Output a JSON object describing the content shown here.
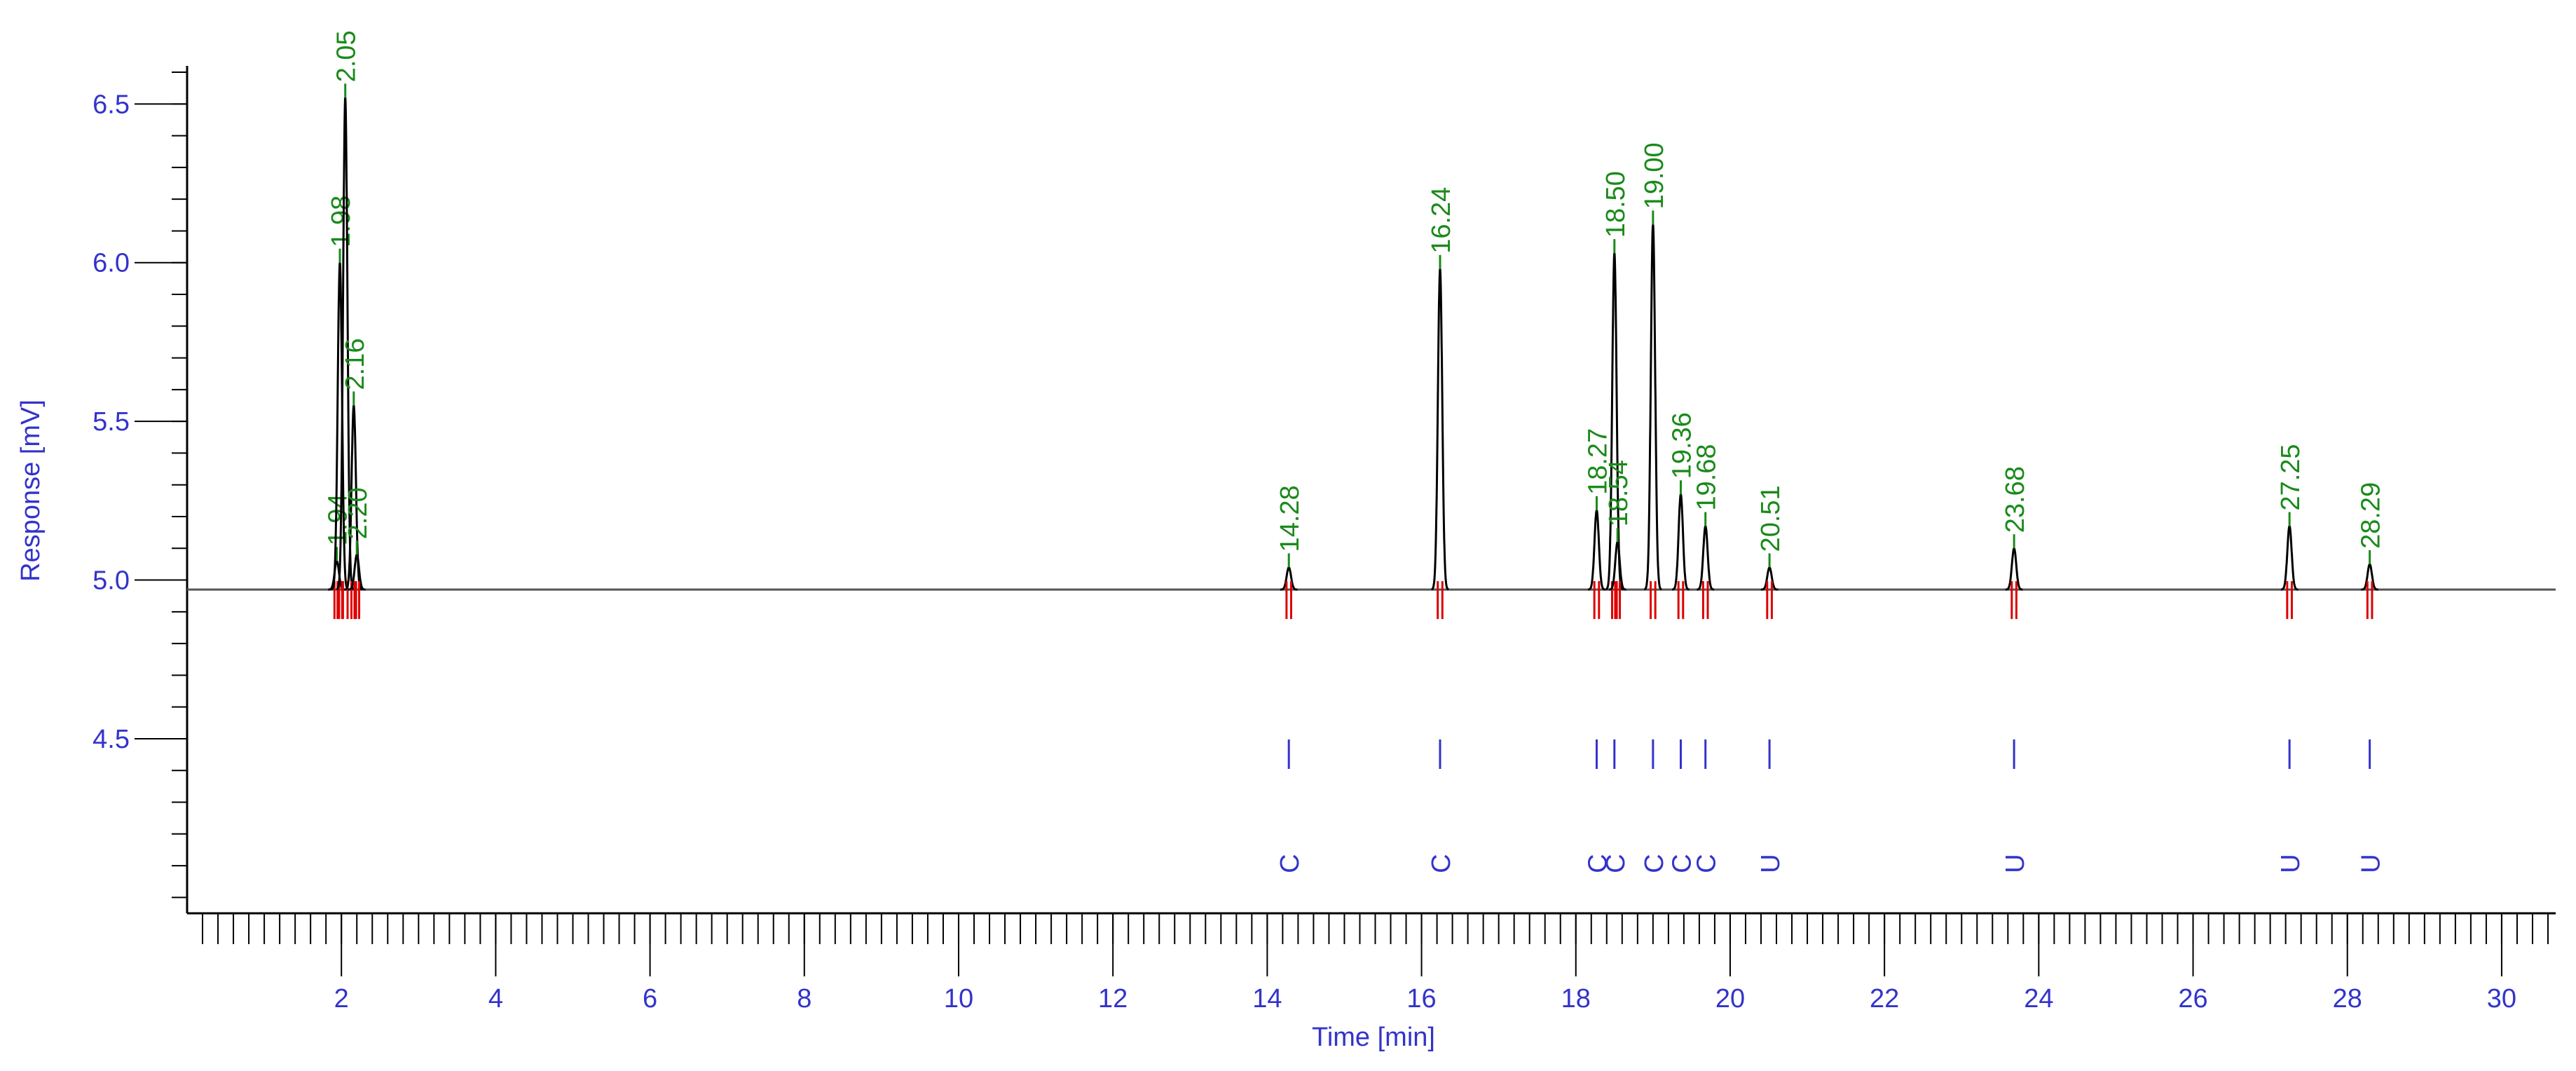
{
  "chart_data": {
    "type": "chromatogram",
    "xlabel": "Time [min]",
    "ylabel": "Response [mV]",
    "xlim": [
      0,
      30.7
    ],
    "ylim": [
      3.95,
      6.62
    ],
    "xticks": [
      2,
      4,
      6,
      8,
      10,
      12,
      14,
      16,
      18,
      20,
      22,
      24,
      26,
      28,
      30
    ],
    "yticks": [
      4.5,
      {
        "value": 5,
        "label": "5.0"
      },
      5.5,
      {
        "value": 6,
        "label": "6.0"
      },
      6.5
    ],
    "baseline": 4.97,
    "x": [
      1.94,
      1.98,
      2.05,
      2.16,
      2.2,
      14.28,
      16.24,
      18.27,
      18.5,
      18.54,
      19.0,
      19.36,
      19.68,
      20.51,
      23.68,
      27.25,
      28.29
    ],
    "peak_labels": [
      "1.94",
      "1.98",
      "2.05",
      "2.16",
      "2.20",
      "14.28",
      "16.24",
      "18.27",
      "18.50",
      "18.54",
      "19.00",
      "19.36",
      "19.68",
      "20.51",
      "23.68",
      "27.25",
      "28.29"
    ],
    "values": [
      5.06,
      6.0,
      6.52,
      5.55,
      5.08,
      5.04,
      5.98,
      5.22,
      6.03,
      5.12,
      6.12,
      5.27,
      5.17,
      5.04,
      5.1,
      5.17,
      5.05
    ],
    "codes": [
      null,
      null,
      null,
      null,
      null,
      "C",
      "C",
      "C",
      "C",
      null,
      "C",
      "C",
      "C",
      "U",
      "U",
      "U",
      "U"
    ],
    "line_color": "#000000",
    "label_color": "#1a8a1a",
    "axis_color": "#3333cc",
    "event_color": "#dd0000"
  }
}
